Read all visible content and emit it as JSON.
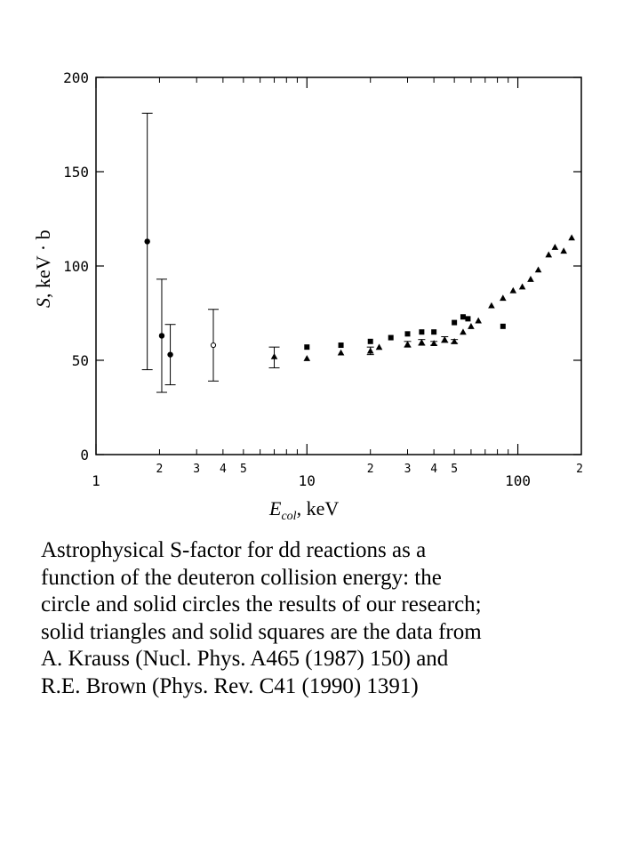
{
  "chart_data": {
    "type": "scatter",
    "x_scale": "log",
    "xlim": [
      1,
      200
    ],
    "ylim": [
      0,
      200
    ],
    "xlabel": {
      "main": "E",
      "sub": "col",
      "rest": ", keV"
    },
    "ylabel": {
      "main": "S",
      "rest": ", keV · b"
    },
    "y_ticks": [
      "0",
      "50",
      "100",
      "150",
      "200"
    ],
    "x_ticks_major": [
      "1",
      "10",
      "100"
    ],
    "x_ticks_minor": [
      "2",
      "3",
      "4",
      "5",
      "2",
      "3",
      "4",
      "5",
      "2"
    ],
    "grid": false,
    "series": [
      {
        "marker": "filled-circle",
        "points": [
          {
            "x": 1.75,
            "y": 113,
            "ylo": 45,
            "yhi": 181
          },
          {
            "x": 2.05,
            "y": 63,
            "ylo": 33,
            "yhi": 93
          },
          {
            "x": 2.25,
            "y": 53,
            "ylo": 37,
            "yhi": 69
          }
        ]
      },
      {
        "marker": "open-circle",
        "points": [
          {
            "x": 3.6,
            "y": 58,
            "ylo": 39,
            "yhi": 77
          }
        ]
      },
      {
        "marker": "filled-triangle",
        "points": [
          {
            "x": 7,
            "y": 52,
            "ylo": 46,
            "yhi": 57
          },
          {
            "x": 10,
            "y": 51
          },
          {
            "x": 14.5,
            "y": 54
          },
          {
            "x": 20,
            "y": 55,
            "ylo": 53,
            "yhi": 57
          },
          {
            "x": 22,
            "y": 57
          },
          {
            "x": 30,
            "y": 58.5,
            "ylo": 57,
            "yhi": 60
          },
          {
            "x": 35,
            "y": 59.5,
            "ylo": 58,
            "yhi": 61
          },
          {
            "x": 40,
            "y": 59,
            "ylo": 58,
            "yhi": 60
          },
          {
            "x": 45,
            "y": 61,
            "ylo": 59.5,
            "yhi": 62.5
          },
          {
            "x": 50,
            "y": 60,
            "ylo": 59,
            "yhi": 61
          },
          {
            "x": 55,
            "y": 65
          },
          {
            "x": 60,
            "y": 68
          },
          {
            "x": 65,
            "y": 71
          },
          {
            "x": 75,
            "y": 79
          },
          {
            "x": 85,
            "y": 83
          },
          {
            "x": 95,
            "y": 87
          },
          {
            "x": 105,
            "y": 89
          },
          {
            "x": 115,
            "y": 93
          },
          {
            "x": 125,
            "y": 98
          },
          {
            "x": 140,
            "y": 106
          },
          {
            "x": 150,
            "y": 110
          },
          {
            "x": 165,
            "y": 108
          },
          {
            "x": 180,
            "y": 115
          }
        ]
      },
      {
        "marker": "filled-square",
        "points": [
          {
            "x": 10,
            "y": 57
          },
          {
            "x": 14.5,
            "y": 58
          },
          {
            "x": 20,
            "y": 60
          },
          {
            "x": 25,
            "y": 62
          },
          {
            "x": 30,
            "y": 64
          },
          {
            "x": 35,
            "y": 65
          },
          {
            "x": 40,
            "y": 65
          },
          {
            "x": 50,
            "y": 70
          },
          {
            "x": 55,
            "y": 73
          },
          {
            "x": 58,
            "y": 72
          },
          {
            "x": 85,
            "y": 68
          }
        ]
      }
    ]
  },
  "caption": [
    "Astrophysical  S-factor for dd reactions as a",
    "function of the deuteron collision energy: the",
    "circle and solid circles the results of our research;",
    "solid triangles and solid squares are the data from",
    "A. Krauss (Nucl. Phys. A465 (1987) 150) and",
    "R.E. Brown (Phys. Rev. C41 (1990) 1391)"
  ]
}
